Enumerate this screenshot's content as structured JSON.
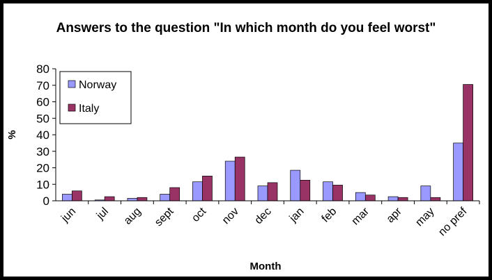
{
  "chart_data": {
    "type": "bar",
    "title": "Answers to the question \"In which month do you feel worst\"",
    "xlabel": "Month",
    "ylabel": "%",
    "ylim": [
      0,
      80
    ],
    "yticks": [
      0,
      10,
      20,
      30,
      40,
      50,
      60,
      70,
      80
    ],
    "grid": false,
    "legend_position": "top-left",
    "categories": [
      "jun",
      "jul",
      "aug",
      "sept",
      "oct",
      "nov",
      "dec",
      "jan",
      "feb",
      "mar",
      "apr",
      "may",
      "no pref"
    ],
    "series": [
      {
        "name": "Norway",
        "color": "#9999ff",
        "values": [
          4,
          0.5,
          1.5,
          4,
          11.5,
          24,
          9,
          18.5,
          11.5,
          5,
          2.5,
          9,
          35
        ]
      },
      {
        "name": "Italy",
        "color": "#993366",
        "values": [
          6,
          2.5,
          2,
          8,
          15,
          26.5,
          11,
          12.5,
          9.5,
          3.5,
          2,
          2,
          70.5
        ]
      }
    ]
  }
}
